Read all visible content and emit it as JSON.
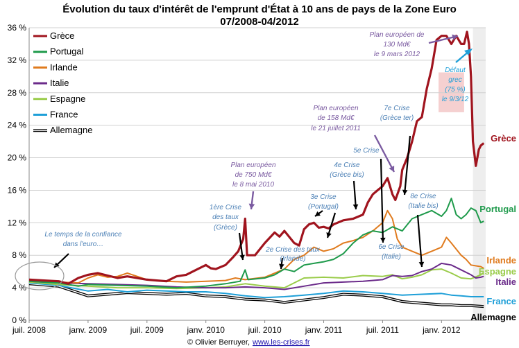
{
  "chart_data": {
    "type": "line",
    "title": "Évolution du taux d'intérêt de l'emprunt d'État à 10 ans de pays de la Zone Euro",
    "subtitle": "07/2008-04/2012",
    "x_range": [
      "2008-07",
      "2012-04"
    ],
    "ylim": [
      0,
      36
    ],
    "y_ticks": [
      "0 %",
      "4 %",
      "8 %",
      "12 %",
      "16 %",
      "20 %",
      "24 %",
      "28 %",
      "32 %",
      "36 %"
    ],
    "x_ticks": [
      "juil. 2008",
      "janv. 2009",
      "juil. 2009",
      "janv. 2010",
      "juil. 2010",
      "janv. 2011",
      "juil. 2011",
      "janv. 2012"
    ],
    "x_tick_months": [
      0,
      6,
      12,
      18,
      24,
      30,
      36,
      42
    ],
    "grid": true,
    "legend_position": "top-left",
    "series": [
      {
        "name": "Grèce",
        "color": "#a0141e",
        "width": 3.2,
        "points": [
          [
            0,
            5.0
          ],
          [
            1.5,
            4.9
          ],
          [
            3,
            4.8
          ],
          [
            4,
            4.5
          ],
          [
            5,
            5.2
          ],
          [
            6,
            5.6
          ],
          [
            7,
            5.8
          ],
          [
            8,
            5.5
          ],
          [
            9,
            5.2
          ],
          [
            10,
            5.4
          ],
          [
            12,
            5.0
          ],
          [
            13,
            4.9
          ],
          [
            14,
            4.8
          ],
          [
            15,
            5.4
          ],
          [
            16,
            5.6
          ],
          [
            17,
            6.2
          ],
          [
            18,
            6.8
          ],
          [
            18.5,
            6.4
          ],
          [
            19,
            6.3
          ],
          [
            20,
            6.8
          ],
          [
            20.8,
            7.8
          ],
          [
            21.3,
            8.5
          ],
          [
            21.8,
            10.0
          ],
          [
            22,
            12.5
          ],
          [
            22.2,
            8.0
          ],
          [
            23,
            8.0
          ],
          [
            24,
            9.5
          ],
          [
            25,
            10.8
          ],
          [
            25.5,
            10.3
          ],
          [
            26,
            11.0
          ],
          [
            27,
            9.5
          ],
          [
            27.5,
            9.2
          ],
          [
            28,
            11.2
          ],
          [
            28.5,
            11.8
          ],
          [
            29,
            12.0
          ],
          [
            29.5,
            11.4
          ],
          [
            30,
            11.5
          ],
          [
            30.5,
            11.3
          ],
          [
            31,
            11.8
          ],
          [
            32,
            12.3
          ],
          [
            33,
            12.5
          ],
          [
            34,
            13.0
          ],
          [
            34.5,
            14.5
          ],
          [
            35,
            15.5
          ],
          [
            35.5,
            16.0
          ],
          [
            36,
            16.5
          ],
          [
            36.5,
            17.5
          ],
          [
            37,
            15.5
          ],
          [
            37.3,
            14.8
          ],
          [
            37.8,
            16.5
          ],
          [
            38,
            18.5
          ],
          [
            38.5,
            20.0
          ],
          [
            39,
            22.0
          ],
          [
            39.5,
            24.5
          ],
          [
            40,
            25.0
          ],
          [
            40.5,
            28.5
          ],
          [
            41,
            31.0
          ],
          [
            41.5,
            34.5
          ],
          [
            42,
            35.0
          ],
          [
            42.5,
            35.0
          ],
          [
            43,
            34.0
          ],
          [
            43.5,
            35.0
          ],
          [
            44,
            34.0
          ],
          [
            44.3,
            34.0
          ],
          [
            44.6,
            35.5
          ],
          [
            44.8,
            34.0
          ],
          [
            45,
            30.0
          ],
          [
            45.2,
            22.0
          ],
          [
            45.5,
            19.0
          ],
          [
            45.8,
            21.0
          ],
          [
            46,
            21.5
          ],
          [
            46.3,
            21.8
          ]
        ]
      },
      {
        "name": "Portugal",
        "color": "#1e9a4b",
        "width": 2,
        "points": [
          [
            0,
            4.8
          ],
          [
            3,
            4.6
          ],
          [
            5,
            4.2
          ],
          [
            6,
            4.4
          ],
          [
            9,
            4.3
          ],
          [
            12,
            4.2
          ],
          [
            15,
            4.0
          ],
          [
            18,
            4.2
          ],
          [
            20,
            4.5
          ],
          [
            21.5,
            4.8
          ],
          [
            22,
            6.2
          ],
          [
            22.3,
            5.0
          ],
          [
            24,
            5.2
          ],
          [
            25,
            5.6
          ],
          [
            26,
            6.3
          ],
          [
            27,
            6.0
          ],
          [
            28,
            6.8
          ],
          [
            29,
            7.0
          ],
          [
            30,
            7.2
          ],
          [
            31,
            7.5
          ],
          [
            32,
            8.2
          ],
          [
            33,
            9.5
          ],
          [
            34,
            10.5
          ],
          [
            35,
            11.0
          ],
          [
            36,
            10.8
          ],
          [
            37,
            11.5
          ],
          [
            38,
            11.0
          ],
          [
            39,
            12.5
          ],
          [
            40,
            13.0
          ],
          [
            41,
            13.5
          ],
          [
            42,
            12.8
          ],
          [
            42.5,
            13.5
          ],
          [
            43,
            15.0
          ],
          [
            43.5,
            13.0
          ],
          [
            44,
            12.5
          ],
          [
            44.5,
            13.0
          ],
          [
            45,
            13.8
          ],
          [
            45.5,
            13.5
          ],
          [
            46,
            12.0
          ],
          [
            46.3,
            12.2
          ]
        ]
      },
      {
        "name": "Irlande",
        "color": "#e07b1e",
        "width": 2,
        "points": [
          [
            0,
            4.8
          ],
          [
            3,
            4.7
          ],
          [
            5,
            4.6
          ],
          [
            6,
            5.2
          ],
          [
            7,
            5.6
          ],
          [
            8,
            5.3
          ],
          [
            9,
            5.4
          ],
          [
            10,
            5.8
          ],
          [
            11,
            5.4
          ],
          [
            12,
            5.0
          ],
          [
            14,
            4.8
          ],
          [
            16,
            4.7
          ],
          [
            18,
            4.8
          ],
          [
            20,
            4.9
          ],
          [
            21,
            5.2
          ],
          [
            22,
            5.0
          ],
          [
            24,
            5.3
          ],
          [
            25,
            5.8
          ],
          [
            26,
            6.3
          ],
          [
            27,
            7.5
          ],
          [
            28,
            8.0
          ],
          [
            29,
            9.0
          ],
          [
            30,
            8.5
          ],
          [
            31,
            8.8
          ],
          [
            32,
            9.5
          ],
          [
            33,
            9.8
          ],
          [
            34,
            10.2
          ],
          [
            35,
            11.0
          ],
          [
            36,
            12.0
          ],
          [
            36.5,
            13.5
          ],
          [
            37,
            12.5
          ],
          [
            37.5,
            10.0
          ],
          [
            38,
            9.0
          ],
          [
            39,
            8.5
          ],
          [
            40,
            8.0
          ],
          [
            41,
            8.5
          ],
          [
            42,
            9.0
          ],
          [
            42.5,
            10.2
          ],
          [
            43,
            9.5
          ],
          [
            44,
            8.0
          ],
          [
            44.5,
            7.5
          ],
          [
            45,
            6.8
          ],
          [
            46,
            6.6
          ],
          [
            46.3,
            6.4
          ]
        ]
      },
      {
        "name": "Italie",
        "color": "#6b2b8a",
        "width": 2,
        "points": [
          [
            0,
            4.8
          ],
          [
            3,
            4.6
          ],
          [
            6,
            4.5
          ],
          [
            9,
            4.4
          ],
          [
            12,
            4.3
          ],
          [
            15,
            4.1
          ],
          [
            18,
            4.0
          ],
          [
            20,
            4.0
          ],
          [
            22,
            4.1
          ],
          [
            24,
            4.0
          ],
          [
            26,
            3.8
          ],
          [
            28,
            4.2
          ],
          [
            30,
            4.6
          ],
          [
            32,
            4.7
          ],
          [
            34,
            4.8
          ],
          [
            36,
            5.0
          ],
          [
            37,
            5.5
          ],
          [
            38,
            5.4
          ],
          [
            39,
            5.5
          ],
          [
            40,
            6.0
          ],
          [
            41,
            6.3
          ],
          [
            42,
            7.0
          ],
          [
            43,
            6.8
          ],
          [
            44,
            6.2
          ],
          [
            45,
            5.6
          ],
          [
            45.5,
            5.2
          ],
          [
            46,
            5.3
          ],
          [
            46.3,
            5.4
          ]
        ]
      },
      {
        "name": "Espagne",
        "color": "#9acc4a",
        "width": 2,
        "points": [
          [
            0,
            4.7
          ],
          [
            3,
            4.4
          ],
          [
            6,
            4.2
          ],
          [
            9,
            4.0
          ],
          [
            12,
            4.0
          ],
          [
            15,
            3.9
          ],
          [
            18,
            4.0
          ],
          [
            20,
            4.1
          ],
          [
            22,
            4.5
          ],
          [
            24,
            4.2
          ],
          [
            26,
            4.0
          ],
          [
            28,
            5.2
          ],
          [
            30,
            5.3
          ],
          [
            32,
            5.2
          ],
          [
            34,
            5.5
          ],
          [
            36,
            5.4
          ],
          [
            37,
            5.6
          ],
          [
            38,
            5.1
          ],
          [
            39,
            5.3
          ],
          [
            40,
            5.6
          ],
          [
            41,
            6.2
          ],
          [
            42,
            6.3
          ],
          [
            43,
            5.8
          ],
          [
            44,
            5.2
          ],
          [
            45,
            5.1
          ],
          [
            46,
            5.6
          ],
          [
            46.3,
            5.9
          ]
        ]
      },
      {
        "name": "France",
        "color": "#1e9fd8",
        "width": 2,
        "points": [
          [
            0,
            4.6
          ],
          [
            3,
            4.3
          ],
          [
            6,
            3.6
          ],
          [
            8,
            3.8
          ],
          [
            10,
            3.5
          ],
          [
            12,
            3.7
          ],
          [
            14,
            3.6
          ],
          [
            16,
            3.5
          ],
          [
            18,
            3.5
          ],
          [
            20,
            3.3
          ],
          [
            22,
            3.0
          ],
          [
            24,
            2.8
          ],
          [
            26,
            2.9
          ],
          [
            28,
            3.1
          ],
          [
            30,
            3.3
          ],
          [
            32,
            3.6
          ],
          [
            34,
            3.5
          ],
          [
            36,
            3.3
          ],
          [
            38,
            3.1
          ],
          [
            40,
            3.2
          ],
          [
            42,
            3.3
          ],
          [
            43,
            3.1
          ],
          [
            44,
            3.0
          ],
          [
            45,
            2.9
          ],
          [
            46.3,
            2.9
          ]
        ]
      },
      {
        "name": "Allemagne",
        "color": "#000000",
        "width": 2,
        "double": true,
        "points": [
          [
            0,
            4.5
          ],
          [
            3,
            4.2
          ],
          [
            6,
            3.0
          ],
          [
            8,
            3.2
          ],
          [
            10,
            3.4
          ],
          [
            12,
            3.3
          ],
          [
            14,
            3.2
          ],
          [
            16,
            3.3
          ],
          [
            18,
            3.0
          ],
          [
            20,
            2.9
          ],
          [
            22,
            2.6
          ],
          [
            24,
            2.5
          ],
          [
            26,
            2.2
          ],
          [
            28,
            2.5
          ],
          [
            30,
            2.8
          ],
          [
            32,
            3.2
          ],
          [
            34,
            3.1
          ],
          [
            36,
            2.9
          ],
          [
            38,
            2.3
          ],
          [
            40,
            2.1
          ],
          [
            42,
            1.9
          ],
          [
            43,
            1.9
          ],
          [
            44,
            1.8
          ],
          [
            45,
            1.8
          ],
          [
            46.3,
            1.7
          ]
        ]
      }
    ],
    "annotations": [
      {
        "text": "Le temps de la confiance",
        "color": "#4a7fb5"
      },
      {
        "text": "dans l'euro…",
        "color": "#4a7fb5"
      },
      {
        "text": "Plan européen",
        "color": "#7a5aa0"
      },
      {
        "text": "de 750 Md€",
        "color": "#7a5aa0"
      },
      {
        "text": "le 8 mai 2010",
        "color": "#7a5aa0"
      },
      {
        "text": "1ère Crise",
        "color": "#4a7fb5"
      },
      {
        "text": "des taux",
        "color": "#4a7fb5"
      },
      {
        "text": "(Grèce)",
        "color": "#4a7fb5"
      },
      {
        "text": "2e Crise des taux",
        "color": "#4a7fb5"
      },
      {
        "text": "(Irlande)",
        "color": "#4a7fb5"
      },
      {
        "text": "3e Crise",
        "color": "#4a7fb5"
      },
      {
        "text": "(Portugal)",
        "color": "#4a7fb5"
      },
      {
        "text": "4e Crise",
        "color": "#4a7fb5"
      },
      {
        "text": "(Grèce bis)",
        "color": "#4a7fb5"
      },
      {
        "text": "5e Crise",
        "color": "#4a7fb5"
      },
      {
        "text": "Plan européen",
        "color": "#7a5aa0"
      },
      {
        "text": "de 158 Md€",
        "color": "#7a5aa0"
      },
      {
        "text": "le 21 juillet 2011",
        "color": "#7a5aa0"
      },
      {
        "text": "7e Crise",
        "color": "#4a7fb5"
      },
      {
        "text": "(Grèce ter)",
        "color": "#4a7fb5"
      },
      {
        "text": "6e Crise",
        "color": "#4a7fb5"
      },
      {
        "text": "(Italie)",
        "color": "#4a7fb5"
      },
      {
        "text": "8e Crise",
        "color": "#4a7fb5"
      },
      {
        "text": "(Italie bis)",
        "color": "#4a7fb5"
      },
      {
        "text": "Plan européen de",
        "color": "#7a5aa0"
      },
      {
        "text": "130 Md€",
        "color": "#7a5aa0"
      },
      {
        "text": "le 9 mars 2012",
        "color": "#7a5aa0"
      },
      {
        "text": "Défaut",
        "color": "#1e9fd8"
      },
      {
        "text": "grec",
        "color": "#1e9fd8"
      },
      {
        "text": "(75 %)",
        "color": "#1e9fd8"
      },
      {
        "text": "le 9/3/12",
        "color": "#1e9fd8"
      }
    ],
    "end_labels": [
      "Grèce",
      "Portugal",
      "Irlande",
      "Espagne",
      "Italie",
      "France",
      "Allemagne"
    ],
    "credit": "© Olivier Berruyer,",
    "credit_link": "www.les-crises.fr"
  }
}
